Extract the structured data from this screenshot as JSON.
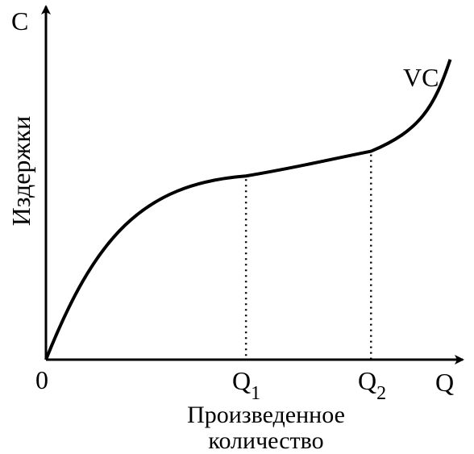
{
  "chart_data": {
    "type": "line",
    "y_axis_letter": "C",
    "x_axis_letter": "Q",
    "ylabel": "Издержки",
    "xlabel_line1": "Произведенное",
    "xlabel_line2": "количество",
    "origin_label": "0",
    "curve_label": "VC",
    "markers": [
      {
        "base": "Q",
        "sub": "1"
      },
      {
        "base": "Q",
        "sub": "2"
      }
    ],
    "series": [
      {
        "name": "VC",
        "points": [
          [
            0,
            0
          ],
          [
            0.48,
            0.52
          ],
          [
            0.78,
            0.59
          ],
          [
            0.97,
            0.85
          ]
        ]
      }
    ],
    "marker_x": [
      0.48,
      0.78
    ],
    "grid": false
  }
}
